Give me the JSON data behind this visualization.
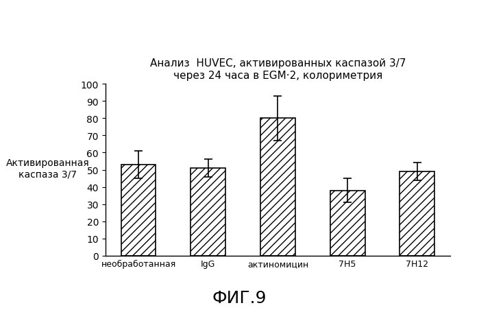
{
  "categories": [
    "необработанная",
    "IgG",
    "актиномицин",
    "7H5",
    "7H12"
  ],
  "values": [
    53,
    51,
    80,
    38,
    49
  ],
  "errors": [
    8,
    5,
    13,
    7,
    5
  ],
  "title_line1": "Анализ  HUVEC, активированных каспазой 3/7",
  "title_line2": "через 24 часа в EGM·2, колориметрия",
  "ylabel_line1": "Активированная",
  "ylabel_line2": "каспаза 3/7",
  "caption": "ФИГ.9",
  "ylim": [
    0,
    100
  ],
  "yticks": [
    0,
    10,
    20,
    30,
    40,
    50,
    60,
    70,
    80,
    90,
    100
  ],
  "bar_color": "#ffffff",
  "bar_edgecolor": "#000000",
  "hatch": "///",
  "title_fontsize": 11,
  "ylabel_fontsize": 10,
  "xtick_fontsize": 9,
  "ytick_fontsize": 10,
  "caption_fontsize": 18,
  "background_color": "#ffffff"
}
